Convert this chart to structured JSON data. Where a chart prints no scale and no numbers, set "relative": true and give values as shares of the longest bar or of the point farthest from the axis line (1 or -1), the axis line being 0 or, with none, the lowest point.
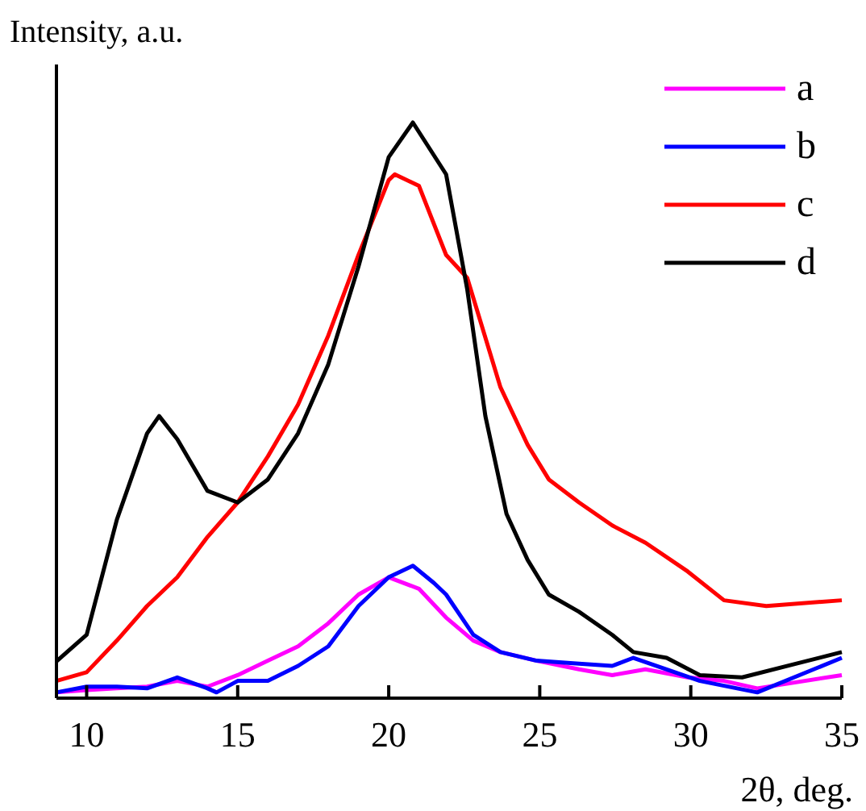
{
  "chart_data": {
    "type": "line",
    "relative": true,
    "xlabel": "2θ, deg.",
    "ylabel": "Intensity, a.u.",
    "xlim": [
      9,
      35
    ],
    "xticks": [
      10,
      15,
      20,
      25,
      30,
      35
    ],
    "legend": "top right",
    "grid": false,
    "marker": "none",
    "line_style": "solid",
    "series": [
      {
        "name": "a",
        "color": "#ff00ff",
        "x": [
          9,
          10,
          11,
          12,
          13,
          14,
          15,
          16,
          17,
          18,
          19,
          20,
          21,
          21.9,
          22.8,
          23.7,
          24.9,
          26.3,
          27.4,
          28.5,
          29.9,
          31.1,
          32.2,
          35
        ],
        "values": [
          0.01,
          0.014,
          0.017,
          0.02,
          0.03,
          0.02,
          0.04,
          0.065,
          0.09,
          0.13,
          0.18,
          0.21,
          0.19,
          0.14,
          0.1,
          0.08,
          0.065,
          0.05,
          0.04,
          0.05,
          0.036,
          0.03,
          0.017,
          0.04
        ]
      },
      {
        "name": "b",
        "color": "#0000ff",
        "x": [
          9,
          10,
          11,
          12,
          13,
          14,
          14.3,
          15,
          16,
          17,
          18,
          19,
          20,
          20.8,
          21.5,
          21.9,
          22.8,
          23.7,
          24.9,
          26.3,
          27.4,
          28.1,
          29.2,
          30.3,
          32.2,
          35
        ],
        "values": [
          0.01,
          0.02,
          0.02,
          0.017,
          0.036,
          0.017,
          0.01,
          0.03,
          0.03,
          0.056,
          0.09,
          0.16,
          0.21,
          0.23,
          0.2,
          0.18,
          0.11,
          0.08,
          0.065,
          0.06,
          0.056,
          0.07,
          0.05,
          0.03,
          0.01,
          0.07
        ]
      },
      {
        "name": "c",
        "color": "#ff0000",
        "x": [
          9,
          10,
          11,
          12,
          13,
          14,
          15,
          16,
          17,
          18,
          19,
          20,
          20.2,
          21,
          21.9,
          22.6,
          23.7,
          24.6,
          25.3,
          26.3,
          27.4,
          28.5,
          29.9,
          31.1,
          32.5,
          35
        ],
        "values": [
          0.03,
          0.045,
          0.1,
          0.16,
          0.21,
          0.28,
          0.34,
          0.42,
          0.51,
          0.63,
          0.77,
          0.9,
          0.91,
          0.89,
          0.77,
          0.73,
          0.54,
          0.44,
          0.38,
          0.34,
          0.3,
          0.27,
          0.22,
          0.17,
          0.16,
          0.17
        ]
      },
      {
        "name": "d",
        "color": "#000000",
        "x": [
          9,
          10,
          11,
          12,
          12.4,
          13,
          14,
          15,
          16,
          17,
          18,
          19,
          20,
          20.8,
          21.9,
          22.6,
          23.2,
          23.9,
          24.6,
          25.3,
          26.3,
          27.4,
          28.1,
          29.2,
          30.3,
          31.7,
          33.5,
          35
        ],
        "values": [
          0.064,
          0.11,
          0.31,
          0.46,
          0.49,
          0.45,
          0.36,
          0.34,
          0.38,
          0.46,
          0.58,
          0.75,
          0.94,
          1,
          0.91,
          0.71,
          0.49,
          0.32,
          0.24,
          0.18,
          0.15,
          0.11,
          0.08,
          0.07,
          0.04,
          0.036,
          0.06,
          0.08
        ]
      }
    ]
  }
}
